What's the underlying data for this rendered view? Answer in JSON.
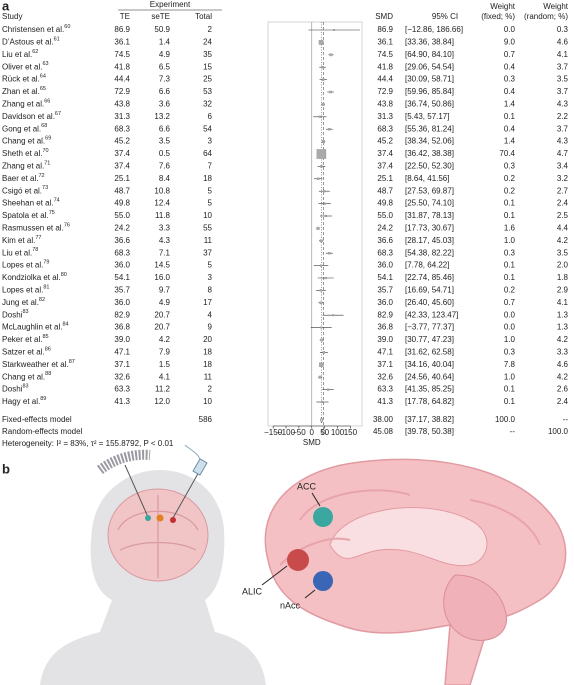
{
  "panel_a": {
    "label": "a",
    "group_header": "Experiment",
    "headers": {
      "study": "Study",
      "te": "TE",
      "sete": "seTE",
      "total": "Total",
      "smd": "SMD",
      "ci": "95% CI",
      "w_fixed": [
        "Weight",
        "(fixed; %)"
      ],
      "w_random": [
        "Weight",
        "(random; %)"
      ]
    },
    "rows": [
      {
        "study": "Christensen et al.",
        "ref": "60",
        "te": "86.9",
        "sete": "50.9",
        "total": "2",
        "smd": "86.9",
        "ci": "[−12.86, 186.66]",
        "w_fixed": "0.0",
        "w_random": "0.3"
      },
      {
        "study": "D’Astous et al.",
        "ref": "61",
        "te": "36.1",
        "sete": "1.4",
        "total": "24",
        "smd": "36.1",
        "ci": "[33.36, 38.84]",
        "w_fixed": "9.0",
        "w_random": "4.6"
      },
      {
        "study": "Liu et al.",
        "ref": "62",
        "te": "74.5",
        "sete": "4.9",
        "total": "35",
        "smd": "74.5",
        "ci": "[64.90, 84.10]",
        "w_fixed": "0.7",
        "w_random": "4.1"
      },
      {
        "study": "Oliver et al.",
        "ref": "63",
        "te": "41.8",
        "sete": "6.5",
        "total": "15",
        "smd": "41.8",
        "ci": "[29.06, 54.54]",
        "w_fixed": "0.4",
        "w_random": "3.7"
      },
      {
        "study": "Rück et al.",
        "ref": "64",
        "te": "44.4",
        "sete": "7.3",
        "total": "25",
        "smd": "44.4",
        "ci": "[30.09, 58.71]",
        "w_fixed": "0.3",
        "w_random": "3.5"
      },
      {
        "study": "Zhan et al.",
        "ref": "65",
        "te": "72.9",
        "sete": "6.6",
        "total": "53",
        "smd": "72.9",
        "ci": "[59.96, 85.84]",
        "w_fixed": "0.4",
        "w_random": "3.7"
      },
      {
        "study": "Zhang et al.",
        "ref": "66",
        "te": "43.8",
        "sete": "3.6",
        "total": "32",
        "smd": "43.8",
        "ci": "[36.74, 50.86]",
        "w_fixed": "1.4",
        "w_random": "4.3"
      },
      {
        "study": "Davidson et al.",
        "ref": "67",
        "te": "31.3",
        "sete": "13.2",
        "total": "6",
        "smd": "31.3",
        "ci": "[5.43, 57.17]",
        "w_fixed": "0.1",
        "w_random": "2.2"
      },
      {
        "study": "Gong et al.",
        "ref": "68",
        "te": "68.3",
        "sete": "6.6",
        "total": "54",
        "smd": "68.3",
        "ci": "[55.36, 81.24]",
        "w_fixed": "0.4",
        "w_random": "3.7"
      },
      {
        "study": "Chang et al.",
        "ref": "69",
        "te": "45.2",
        "sete": "3.5",
        "total": "3",
        "smd": "45.2",
        "ci": "[38.34, 52.06]",
        "w_fixed": "1.4",
        "w_random": "4.3"
      },
      {
        "study": "Sheth et al.",
        "ref": "70",
        "te": "37.4",
        "sete": "0.5",
        "total": "64",
        "smd": "37.4",
        "ci": "[36.42, 38.38]",
        "w_fixed": "70.4",
        "w_random": "4.7"
      },
      {
        "study": "Zhang et al.",
        "ref": "71",
        "te": "37.4",
        "sete": "7.6",
        "total": "7",
        "smd": "37.4",
        "ci": "[22.50, 52.30]",
        "w_fixed": "0.3",
        "w_random": "3.4"
      },
      {
        "study": "Baer et al.",
        "ref": "72",
        "te": "25.1",
        "sete": "8.4",
        "total": "18",
        "smd": "25.1",
        "ci": "[8.64, 41.56]",
        "w_fixed": "0.2",
        "w_random": "3.2"
      },
      {
        "study": "Csigó et al.",
        "ref": "73",
        "te": "48.7",
        "sete": "10.8",
        "total": "5",
        "smd": "48.7",
        "ci": "[27.53, 69.87]",
        "w_fixed": "0.2",
        "w_random": "2.7"
      },
      {
        "study": "Sheehan et al.",
        "ref": "74",
        "te": "49.8",
        "sete": "12.4",
        "total": "5",
        "smd": "49.8",
        "ci": "[25.50, 74.10]",
        "w_fixed": "0.1",
        "w_random": "2.4"
      },
      {
        "study": "Spatola et al.",
        "ref": "75",
        "te": "55.0",
        "sete": "11.8",
        "total": "10",
        "smd": "55.0",
        "ci": "[31.87, 78.13]",
        "w_fixed": "0.1",
        "w_random": "2.5"
      },
      {
        "study": "Rasmussen et al.",
        "ref": "76",
        "te": "24.2",
        "sete": "3.3",
        "total": "55",
        "smd": "24.2",
        "ci": "[17.73, 30.67]",
        "w_fixed": "1.6",
        "w_random": "4.4"
      },
      {
        "study": "Kim et al.",
        "ref": "77",
        "te": "36.6",
        "sete": "4.3",
        "total": "11",
        "smd": "36.6",
        "ci": "[28.17, 45.03]",
        "w_fixed": "1.0",
        "w_random": "4.2"
      },
      {
        "study": "Liu et al.",
        "ref": "78",
        "te": "68.3",
        "sete": "7.1",
        "total": "37",
        "smd": "68.3",
        "ci": "[54.38, 82.22]",
        "w_fixed": "0.3",
        "w_random": "3.5"
      },
      {
        "study": "Lopes et al.",
        "ref": "79",
        "te": "36.0",
        "sete": "14.5",
        "total": "5",
        "smd": "36.0",
        "ci": "[7.78, 64.22]",
        "w_fixed": "0.1",
        "w_random": "2.0"
      },
      {
        "study": "Kondziolka et al.",
        "ref": "80",
        "te": "54.1",
        "sete": "16.0",
        "total": "3",
        "smd": "54.1",
        "ci": "[22.74, 85.46]",
        "w_fixed": "0.1",
        "w_random": "1.8"
      },
      {
        "study": "Lopes et al.",
        "ref": "81",
        "te": "35.7",
        "sete": "9.7",
        "total": "8",
        "smd": "35.7",
        "ci": "[16.69, 54.71]",
        "w_fixed": "0.2",
        "w_random": "2.9"
      },
      {
        "study": "Jung et al.",
        "ref": "82",
        "te": "36.0",
        "sete": "4.9",
        "total": "17",
        "smd": "36.0",
        "ci": "[26.40, 45.60]",
        "w_fixed": "0.7",
        "w_random": "4.1"
      },
      {
        "study": "Doshi",
        "ref": "83",
        "te": "82.9",
        "sete": "20.7",
        "total": "4",
        "smd": "82.9",
        "ci": "[42.33, 123.47]",
        "w_fixed": "0.0",
        "w_random": "1.3"
      },
      {
        "study": "McLaughlin et al.",
        "ref": "84",
        "te": "36.8",
        "sete": "20.7",
        "total": "9",
        "smd": "36.8",
        "ci": "[−3.77, 77.37]",
        "w_fixed": "0.0",
        "w_random": "1.3"
      },
      {
        "study": "Peker et al.",
        "ref": "85",
        "te": "39.0",
        "sete": "4.2",
        "total": "20",
        "smd": "39.0",
        "ci": "[30.77, 47.23]",
        "w_fixed": "1.0",
        "w_random": "4.2"
      },
      {
        "study": "Satzer et al.",
        "ref": "86",
        "te": "47.1",
        "sete": "7.9",
        "total": "18",
        "smd": "47.1",
        "ci": "[31.62, 62.58]",
        "w_fixed": "0.3",
        "w_random": "3.3"
      },
      {
        "study": "Starkweather et al.",
        "ref": "87",
        "te": "37.1",
        "sete": "1.5",
        "total": "18",
        "smd": "37.1",
        "ci": "[34.16, 40.04]",
        "w_fixed": "7.8",
        "w_random": "4.6"
      },
      {
        "study": "Chang et al.",
        "ref": "88",
        "te": "32.6",
        "sete": "4.1",
        "total": "11",
        "smd": "32.6",
        "ci": "[24.56, 40.64]",
        "w_fixed": "1.0",
        "w_random": "4.2"
      },
      {
        "study": "Doshi",
        "ref": "83",
        "te": "63.3",
        "sete": "11.2",
        "total": "2",
        "smd": "63.3",
        "ci": "[41.35, 85.25]",
        "w_fixed": "0.1",
        "w_random": "2.6"
      },
      {
        "study": "Hagy et al.",
        "ref": "89",
        "te": "41.3",
        "sete": "12.0",
        "total": "10",
        "smd": "41.3",
        "ci": "[17.78, 64.82]",
        "w_fixed": "0.1",
        "w_random": "2.4"
      }
    ],
    "fixed": {
      "study": "Fixed-effects model",
      "total": "586",
      "smd": "38.00",
      "ci": "[37.17, 38.82]",
      "w_fixed": "100.0",
      "w_random": "--"
    },
    "random": {
      "study": "Random-effects model",
      "smd": "45.08",
      "ci": "[39.78, 50.38]",
      "w_fixed": "--",
      "w_random": "100.0"
    },
    "heterogeneity": "Heterogeneity: I² = 83%, τ² = 155.8792, P < 0.01",
    "axis": {
      "label": "SMD",
      "xlim": [
        -170,
        195
      ],
      "xticks": [
        {
          "value": -150,
          "label": "−150"
        },
        {
          "value": -100,
          "label": "−100"
        },
        {
          "value": -50,
          "label": "−50"
        },
        0,
        50,
        100,
        150
      ]
    }
  },
  "panel_b": {
    "label": "b",
    "regions": [
      "ACC",
      "ALIC",
      "nAcc"
    ]
  }
}
